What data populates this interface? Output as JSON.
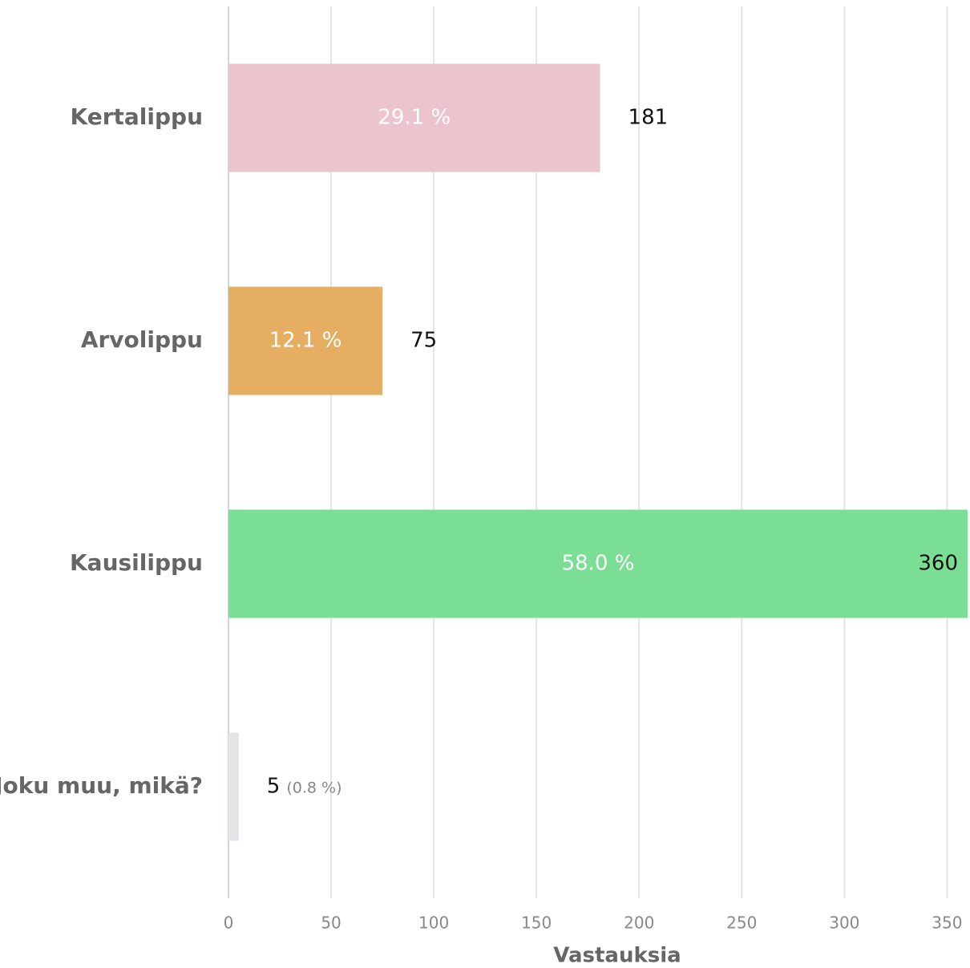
{
  "chart_data": {
    "type": "hbar",
    "categories": [
      "Kertalippu",
      "Arvolippu",
      "Kausilippu",
      "Joku muu, mikä?"
    ],
    "values": [
      181,
      75,
      360,
      5
    ],
    "percent_labels": [
      "29.1 %",
      "12.1 %",
      "58.0 %",
      "(0.8 %)"
    ],
    "colors": [
      "#ecc5cc",
      "#e5ae62",
      "#7ade94",
      "#e3e4e8"
    ],
    "xlim": [
      0,
      360
    ],
    "xticks": [
      0,
      50,
      100,
      150,
      200,
      250,
      300,
      350
    ],
    "xlabel": "Vastauksia",
    "grid": true
  }
}
